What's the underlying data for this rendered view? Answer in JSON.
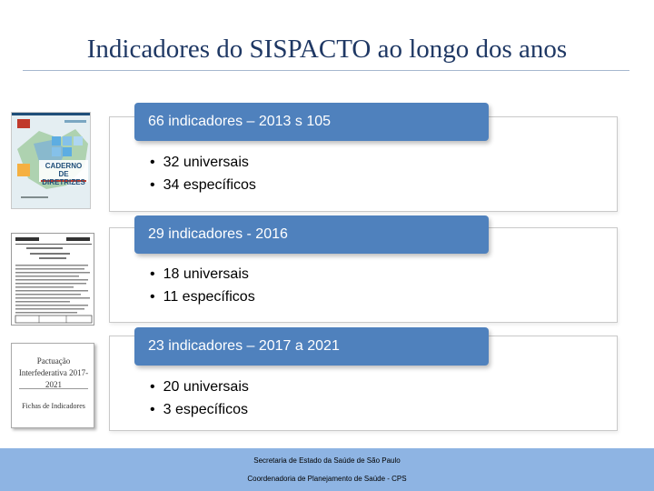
{
  "title": "Indicadores do SISPACTO ao longo dos anos",
  "sections": [
    {
      "header": "66 indicadores – 2013 s 105",
      "bullets": [
        "32 universais",
        "34 específicos"
      ]
    },
    {
      "header": "29 indicadores - 2016",
      "bullets": [
        "18 universais",
        "11 específicos"
      ]
    },
    {
      "header": "23 indicadores – 2017 a 2021",
      "bullets": [
        "20 universais",
        "3 específicos"
      ]
    }
  ],
  "thumbnails": {
    "t1_text": "CADERNO DE DIRETRIZES",
    "t3_title": "Pactuação Interfederativa 2017-2021",
    "t3_sub": "Fichas de Indicadores"
  },
  "footer": {
    "line1": "Secretaria de Estado da Saúde de São Paulo",
    "line2": "Coordenadoria de Planejamento de Saúde - CPS"
  },
  "colors": {
    "accent": "#4f81bd",
    "title": "#1f3864",
    "footer": "#8eb4e3"
  }
}
